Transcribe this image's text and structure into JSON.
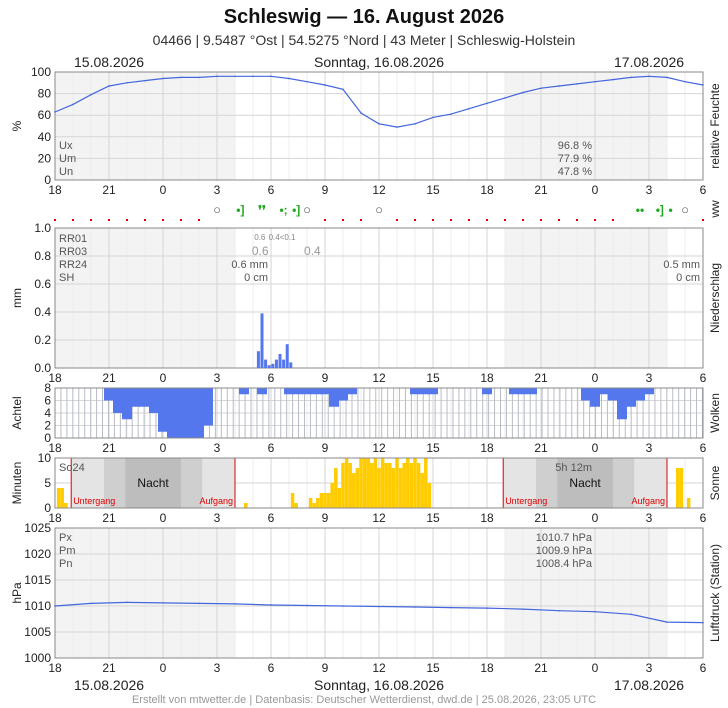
{
  "header": {
    "title": "Schleswig  —  16. August 2026",
    "subtitle": "04466  |  9.5487 °Ost  |  54.5275 °Nord  |  43 Meter  |  Schleswig-Holstein"
  },
  "dates": {
    "left": "15.08.2026",
    "center": "Sonntag, 16.08.2026",
    "right": "17.08.2026"
  },
  "footer": "Erstellt von mtwetter.de | Datenbasis: Deutscher Wetterdienst, dwd.de | 25.08.2026, 23:05 UTC",
  "time_ticks": [
    "18",
    "21",
    "0",
    "3",
    "6",
    "9",
    "12",
    "15",
    "18",
    "21",
    "0",
    "3",
    "6"
  ],
  "colors": {
    "line": "#4466dd",
    "bar_blue": "#5577ee",
    "bar_sun": "#ffcc00",
    "wx_green": "#22aa22",
    "night_red": "#dd0000"
  },
  "chart_data": [
    {
      "id": "humidity",
      "type": "line",
      "title": "relative Feuchte",
      "ylabel": "%",
      "ylim": [
        0,
        100
      ],
      "yticks": [
        "0",
        "20",
        "40",
        "60",
        "80",
        "100"
      ],
      "stats": [
        {
          "label": "Ux",
          "value": "96.8 %"
        },
        {
          "label": "Um",
          "value": "77.9 %"
        },
        {
          "label": "Un",
          "value": "47.8 %"
        }
      ],
      "x": [
        0,
        1,
        2,
        3,
        4,
        5,
        6,
        7,
        8,
        9,
        10,
        11,
        12,
        13,
        14,
        15,
        16,
        17,
        18,
        19,
        20,
        21,
        22,
        23,
        24,
        25,
        26,
        27,
        28,
        29,
        30,
        31,
        32,
        33,
        34,
        35,
        36
      ],
      "values": [
        63,
        70,
        79,
        87,
        90,
        92,
        94,
        95,
        95,
        96,
        96,
        96,
        96,
        94,
        91,
        88,
        84,
        62,
        52,
        49,
        52,
        58,
        61,
        66,
        71,
        76,
        81,
        85,
        87,
        89,
        91,
        93,
        95,
        96,
        95,
        91,
        88
      ]
    },
    {
      "id": "ww",
      "type": "symbols",
      "title": "ww",
      "symbols": [
        {
          "x": 9.0,
          "symbol": "○"
        },
        {
          "x": 10.3,
          "symbol": "•]"
        },
        {
          "x": 11.5,
          "symbol": "❜❜"
        },
        {
          "x": 12.7,
          "symbol": "•;"
        },
        {
          "x": 13.4,
          "symbol": "•]"
        },
        {
          "x": 14.0,
          "symbol": "○"
        },
        {
          "x": 18.0,
          "symbol": "○"
        },
        {
          "x": 32.5,
          "symbol": "••"
        },
        {
          "x": 33.6,
          "symbol": "•]"
        },
        {
          "x": 34.2,
          "symbol": "•"
        },
        {
          "x": 35.0,
          "symbol": "○"
        }
      ]
    },
    {
      "id": "precip",
      "type": "bar",
      "title": "Niederschlag",
      "ylabel": "mm",
      "ylim": [
        0,
        1.0
      ],
      "yticks": [
        "0.0",
        "0.2",
        "0.4",
        "0.6",
        "0.8",
        "1.0"
      ],
      "stats": [
        {
          "label": "RR01",
          "left_value": "",
          "right_value": ""
        },
        {
          "label": "RR03",
          "left_value": "",
          "right_value": ""
        },
        {
          "label": "RR24",
          "left_value": "0.6 mm",
          "right_value": "0.5 mm"
        },
        {
          "label": "SH",
          "left_value": "0 cm",
          "right_value": "0 cm"
        }
      ],
      "annotations": [
        {
          "x": 11.4,
          "text": "0.6",
          "size": "small"
        },
        {
          "x": 12.2,
          "text": "0.4<0.1",
          "size": "small"
        },
        {
          "x": 11.4,
          "text": "0.6",
          "size": "large"
        },
        {
          "x": 14.3,
          "text": "0.4",
          "size": "large"
        }
      ],
      "x": [
        11.3,
        11.5,
        11.7,
        11.9,
        12.1,
        12.3,
        12.5,
        12.7,
        12.9,
        13.1
      ],
      "values": [
        0.12,
        0.39,
        0.06,
        0.02,
        0.03,
        0.06,
        0.1,
        0.06,
        0.17,
        0.04
      ]
    },
    {
      "id": "clouds",
      "type": "bar",
      "title": "Wolken",
      "ylabel": "Achtel",
      "ylim": [
        0,
        8
      ],
      "yticks": [
        "0",
        "2",
        "4",
        "6",
        "8"
      ],
      "x": [
        3,
        3.5,
        4,
        4.5,
        5,
        5.5,
        6,
        6.5,
        7,
        7.5,
        8,
        8.5,
        9,
        9.5,
        10,
        10.5,
        11,
        11.5,
        12,
        12.5,
        13,
        13.5,
        14,
        14.5,
        15,
        15.5,
        16,
        16.5,
        17,
        17.5,
        18,
        18.5,
        19,
        19.5,
        20,
        20.5,
        21,
        21.5,
        22,
        22.5,
        23,
        23.5,
        24,
        24.5,
        25,
        25.5,
        26,
        26.5,
        27,
        27.5,
        28,
        28.5,
        29,
        29.5,
        30,
        30.5,
        31,
        31.5,
        32,
        32.5,
        33,
        33.5,
        34,
        34.5,
        35,
        35.5,
        36
      ],
      "values": [
        2,
        4,
        5,
        3,
        3,
        4,
        7,
        8,
        8,
        8,
        8,
        6,
        0,
        0,
        0,
        1,
        0,
        1,
        0,
        0,
        1,
        1,
        1,
        1,
        1,
        3,
        2,
        1,
        0,
        0,
        0,
        0,
        0,
        0,
        1,
        1,
        1,
        0,
        0,
        0,
        0,
        0,
        1,
        0,
        0,
        1,
        1,
        1,
        0,
        0,
        0,
        0,
        0,
        0,
        0,
        0,
        0,
        0,
        0,
        0,
        0,
        0,
        0,
        0,
        0,
        0,
        0
      ],
      "extra": [
        {
          "x": 29.5,
          "value": 2
        },
        {
          "x": 30,
          "value": 3
        },
        {
          "x": 30.5,
          "value": 1
        },
        {
          "x": 31,
          "value": 2
        },
        {
          "x": 31.5,
          "value": 5
        },
        {
          "x": 32,
          "value": 3
        },
        {
          "x": 32.5,
          "value": 2
        },
        {
          "x": 33,
          "value": 1
        }
      ]
    },
    {
      "id": "sun",
      "type": "bar",
      "title": "Sonne",
      "ylabel": "Minuten",
      "ylim": [
        0,
        10
      ],
      "yticks": [
        "0",
        "5",
        "10"
      ],
      "left_label": "So24",
      "right_label": "5h 12m",
      "night_label": "Nacht",
      "sunset_label": "Untergang",
      "sunrise_label": "Aufgang",
      "nights": [
        {
          "start": 0.9,
          "end": 10.0
        },
        {
          "start": 24.9,
          "end": 34.0
        }
      ],
      "x": [
        0.2,
        0.4,
        0.6,
        10.6,
        13.2,
        13.4,
        14.2,
        14.4,
        14.6,
        14.8,
        15.0,
        15.2,
        15.4,
        15.6,
        15.8,
        16.0,
        16.2,
        16.4,
        16.6,
        16.8,
        17.0,
        17.2,
        17.4,
        17.6,
        17.8,
        18.0,
        18.2,
        18.4,
        18.6,
        18.8,
        19.0,
        19.2,
        19.4,
        19.6,
        19.8,
        20.0,
        20.2,
        20.4,
        20.6,
        20.8,
        34.6,
        34.8,
        35.2
      ],
      "values": [
        4,
        4,
        1,
        1,
        3,
        1,
        2,
        1,
        2,
        3,
        3,
        3,
        5,
        8,
        4,
        9,
        10,
        9,
        7,
        8,
        10,
        10,
        10,
        9,
        10,
        8,
        10,
        9,
        9,
        8,
        10,
        8,
        9,
        10,
        9,
        10,
        9,
        7,
        10,
        5,
        8,
        8,
        2
      ]
    },
    {
      "id": "pressure",
      "type": "line",
      "title": "Luftdruck (Station)",
      "ylabel": "hPa",
      "ylim": [
        1000,
        1025
      ],
      "yticks": [
        "1000",
        "1005",
        "1010",
        "1015",
        "1020",
        "1025"
      ],
      "stats": [
        {
          "label": "Px",
          "value": "1010.7 hPa"
        },
        {
          "label": "Pm",
          "value": "1009.9 hPa"
        },
        {
          "label": "Pn",
          "value": "1008.4 hPa"
        }
      ],
      "x": [
        0,
        2,
        4,
        6,
        8,
        10,
        12,
        14,
        16,
        18,
        20,
        22,
        24,
        26,
        28,
        30,
        32,
        34,
        36
      ],
      "values": [
        1010.0,
        1010.5,
        1010.7,
        1010.6,
        1010.5,
        1010.4,
        1010.2,
        1010.1,
        1010.0,
        1009.9,
        1009.8,
        1009.7,
        1009.6,
        1009.4,
        1009.1,
        1008.9,
        1008.4,
        1006.9,
        1006.8
      ]
    }
  ]
}
